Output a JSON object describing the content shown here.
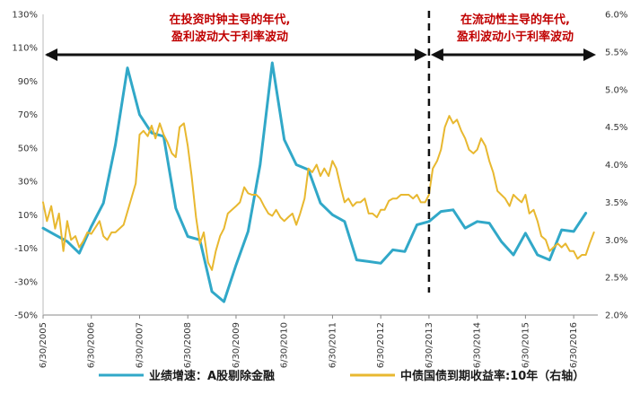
{
  "chart_data": {
    "type": "line",
    "left_axis": {
      "ylim": [
        -50,
        130
      ],
      "ticks": [
        "130%",
        "110%",
        "90%",
        "70%",
        "50%",
        "30%",
        "10%",
        "-10%",
        "-30%",
        "-50%"
      ]
    },
    "right_axis": {
      "ylim": [
        2.0,
        6.0
      ],
      "ticks": [
        "6.0%",
        "5.5%",
        "5.0%",
        "4.5%",
        "4.0%",
        "3.5%",
        "3.0%",
        "2.5%",
        "2.0%"
      ]
    },
    "x_axis": {
      "range": [
        2005.5,
        2017.0
      ],
      "tick_labels": [
        "6/30/2005",
        "6/30/2006",
        "6/30/2007",
        "6/30/2008",
        "6/30/2009",
        "6/30/2010",
        "6/30/2011",
        "6/30/2012",
        "6/30/2013",
        "6/30/2014",
        "6/30/2015",
        "6/30/2016"
      ]
    },
    "series": [
      {
        "name": "业绩增速：A股剔除金融",
        "axis": "left",
        "color": "#31a8c8",
        "points": [
          [
            2005.5,
            2
          ],
          [
            2005.75,
            -2
          ],
          [
            2006.0,
            -6
          ],
          [
            2006.25,
            -13
          ],
          [
            2006.5,
            3
          ],
          [
            2006.75,
            17
          ],
          [
            2007.0,
            52
          ],
          [
            2007.25,
            98
          ],
          [
            2007.5,
            70
          ],
          [
            2007.75,
            59
          ],
          [
            2008.0,
            57
          ],
          [
            2008.25,
            14
          ],
          [
            2008.5,
            -3
          ],
          [
            2008.75,
            -5
          ],
          [
            2009.0,
            -36
          ],
          [
            2009.25,
            -42
          ],
          [
            2009.5,
            -20
          ],
          [
            2009.75,
            0
          ],
          [
            2010.0,
            40
          ],
          [
            2010.25,
            101
          ],
          [
            2010.5,
            55
          ],
          [
            2010.75,
            40
          ],
          [
            2011.0,
            37
          ],
          [
            2011.25,
            17
          ],
          [
            2011.5,
            10
          ],
          [
            2011.75,
            6
          ],
          [
            2012.0,
            -17
          ],
          [
            2012.25,
            -18
          ],
          [
            2012.5,
            -19
          ],
          [
            2012.75,
            -11
          ],
          [
            2013.0,
            -12
          ],
          [
            2013.25,
            4
          ],
          [
            2013.5,
            6
          ],
          [
            2013.75,
            12
          ],
          [
            2014.0,
            13
          ],
          [
            2014.25,
            2
          ],
          [
            2014.5,
            6
          ],
          [
            2014.75,
            5
          ],
          [
            2015.0,
            -6
          ],
          [
            2015.25,
            -14
          ],
          [
            2015.5,
            -1
          ],
          [
            2015.75,
            -14
          ],
          [
            2016.0,
            -17
          ],
          [
            2016.25,
            1
          ],
          [
            2016.5,
            0
          ],
          [
            2016.75,
            11
          ]
        ]
      },
      {
        "name": "中债国债到期收益率:10年（右轴）",
        "axis": "right",
        "color": "#e8b830",
        "points": [
          [
            2005.5,
            3.5
          ],
          [
            2005.58,
            3.25
          ],
          [
            2005.67,
            3.45
          ],
          [
            2005.75,
            3.15
          ],
          [
            2005.83,
            3.35
          ],
          [
            2005.92,
            2.85
          ],
          [
            2006.0,
            3.25
          ],
          [
            2006.08,
            3.0
          ],
          [
            2006.17,
            3.05
          ],
          [
            2006.25,
            2.9
          ],
          [
            2006.33,
            2.98
          ],
          [
            2006.42,
            3.1
          ],
          [
            2006.5,
            3.08
          ],
          [
            2006.67,
            3.25
          ],
          [
            2006.75,
            3.05
          ],
          [
            2006.83,
            3.0
          ],
          [
            2006.92,
            3.1
          ],
          [
            2007.0,
            3.1
          ],
          [
            2007.17,
            3.2
          ],
          [
            2007.33,
            3.55
          ],
          [
            2007.42,
            3.75
          ],
          [
            2007.5,
            4.4
          ],
          [
            2007.58,
            4.45
          ],
          [
            2007.67,
            4.38
          ],
          [
            2007.75,
            4.52
          ],
          [
            2007.83,
            4.35
          ],
          [
            2007.92,
            4.55
          ],
          [
            2008.0,
            4.4
          ],
          [
            2008.08,
            4.3
          ],
          [
            2008.17,
            4.15
          ],
          [
            2008.25,
            4.1
          ],
          [
            2008.33,
            4.5
          ],
          [
            2008.42,
            4.55
          ],
          [
            2008.5,
            4.25
          ],
          [
            2008.58,
            3.85
          ],
          [
            2008.67,
            3.3
          ],
          [
            2008.75,
            2.95
          ],
          [
            2008.83,
            3.1
          ],
          [
            2008.92,
            2.7
          ],
          [
            2009.0,
            2.6
          ],
          [
            2009.08,
            2.85
          ],
          [
            2009.17,
            3.05
          ],
          [
            2009.25,
            3.15
          ],
          [
            2009.33,
            3.35
          ],
          [
            2009.5,
            3.45
          ],
          [
            2009.58,
            3.5
          ],
          [
            2009.67,
            3.7
          ],
          [
            2009.75,
            3.62
          ],
          [
            2009.83,
            3.6
          ],
          [
            2009.92,
            3.6
          ],
          [
            2010.0,
            3.55
          ],
          [
            2010.08,
            3.45
          ],
          [
            2010.17,
            3.35
          ],
          [
            2010.25,
            3.32
          ],
          [
            2010.33,
            3.4
          ],
          [
            2010.42,
            3.3
          ],
          [
            2010.5,
            3.25
          ],
          [
            2010.58,
            3.3
          ],
          [
            2010.67,
            3.35
          ],
          [
            2010.75,
            3.2
          ],
          [
            2010.83,
            3.35
          ],
          [
            2010.92,
            3.55
          ],
          [
            2011.0,
            3.95
          ],
          [
            2011.08,
            3.9
          ],
          [
            2011.17,
            4.0
          ],
          [
            2011.25,
            3.85
          ],
          [
            2011.33,
            3.95
          ],
          [
            2011.42,
            3.85
          ],
          [
            2011.5,
            4.05
          ],
          [
            2011.58,
            3.95
          ],
          [
            2011.67,
            3.7
          ],
          [
            2011.75,
            3.5
          ],
          [
            2011.83,
            3.55
          ],
          [
            2011.92,
            3.45
          ],
          [
            2012.0,
            3.5
          ],
          [
            2012.08,
            3.5
          ],
          [
            2012.17,
            3.55
          ],
          [
            2012.25,
            3.35
          ],
          [
            2012.33,
            3.35
          ],
          [
            2012.42,
            3.3
          ],
          [
            2012.5,
            3.4
          ],
          [
            2012.58,
            3.4
          ],
          [
            2012.67,
            3.52
          ],
          [
            2012.75,
            3.55
          ],
          [
            2012.83,
            3.55
          ],
          [
            2012.92,
            3.6
          ],
          [
            2013.0,
            3.6
          ],
          [
            2013.08,
            3.6
          ],
          [
            2013.17,
            3.55
          ],
          [
            2013.25,
            3.6
          ],
          [
            2013.33,
            3.5
          ],
          [
            2013.42,
            3.5
          ],
          [
            2013.5,
            3.6
          ],
          [
            2013.58,
            3.95
          ],
          [
            2013.67,
            4.05
          ],
          [
            2013.75,
            4.2
          ],
          [
            2013.83,
            4.5
          ],
          [
            2013.92,
            4.65
          ],
          [
            2014.0,
            4.55
          ],
          [
            2014.08,
            4.6
          ],
          [
            2014.17,
            4.45
          ],
          [
            2014.25,
            4.35
          ],
          [
            2014.33,
            4.2
          ],
          [
            2014.42,
            4.15
          ],
          [
            2014.5,
            4.2
          ],
          [
            2014.58,
            4.35
          ],
          [
            2014.67,
            4.25
          ],
          [
            2014.75,
            4.05
          ],
          [
            2014.83,
            3.9
          ],
          [
            2014.92,
            3.65
          ],
          [
            2015.0,
            3.6
          ],
          [
            2015.08,
            3.55
          ],
          [
            2015.17,
            3.45
          ],
          [
            2015.25,
            3.6
          ],
          [
            2015.33,
            3.55
          ],
          [
            2015.42,
            3.5
          ],
          [
            2015.5,
            3.6
          ],
          [
            2015.58,
            3.35
          ],
          [
            2015.67,
            3.4
          ],
          [
            2015.75,
            3.25
          ],
          [
            2015.83,
            3.05
          ],
          [
            2015.92,
            3.0
          ],
          [
            2016.0,
            2.85
          ],
          [
            2016.08,
            2.9
          ],
          [
            2016.17,
            2.95
          ],
          [
            2016.25,
            2.9
          ],
          [
            2016.33,
            2.95
          ],
          [
            2016.42,
            2.85
          ],
          [
            2016.5,
            2.85
          ],
          [
            2016.58,
            2.75
          ],
          [
            2016.67,
            2.8
          ],
          [
            2016.75,
            2.8
          ],
          [
            2016.83,
            2.95
          ],
          [
            2016.92,
            3.1
          ]
        ]
      }
    ],
    "divider_x": 2013.5,
    "annotations": [
      {
        "lines": [
          "在投资时钟主导的年代,",
          "盈利波动大于利率波动"
        ]
      },
      {
        "lines": [
          "在流动性主导的年代,",
          "盈利波动小于利率波动"
        ]
      }
    ],
    "legend": {
      "position": "bottom",
      "items": [
        "业绩增速：A股剔除金融",
        "中债国债到期收益率:10年（右轴）"
      ]
    }
  }
}
